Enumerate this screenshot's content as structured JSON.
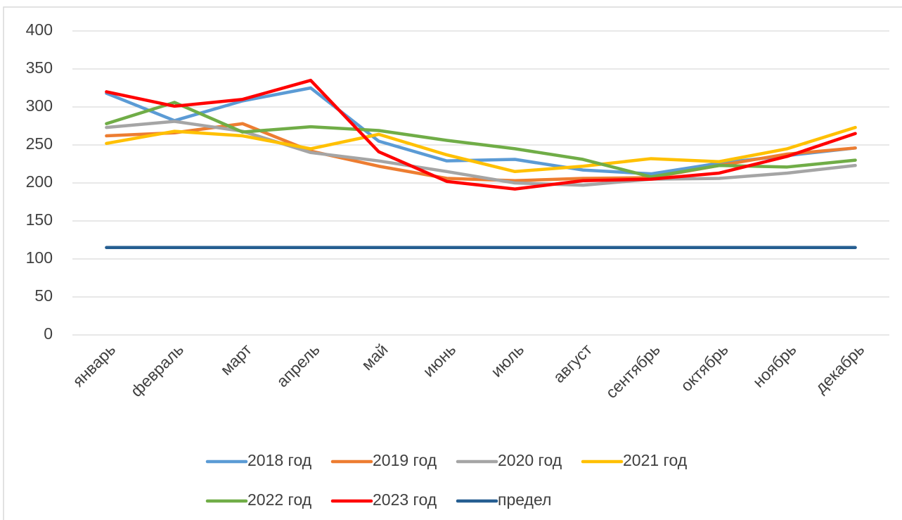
{
  "chart_data": {
    "type": "line",
    "categories": [
      "январь",
      "февраль",
      "март",
      "апрель",
      "май",
      "июнь",
      "июль",
      "август",
      "сентябрь",
      "октябрь",
      "ноябрь",
      "декабрь"
    ],
    "series": [
      {
        "name": "2018 год",
        "color": "#5b9bd5",
        "values": [
          318,
          282,
          308,
          325,
          255,
          229,
          231,
          217,
          212,
          226,
          236,
          246
        ]
      },
      {
        "name": "2019 год",
        "color": "#ed7d31",
        "values": [
          262,
          266,
          278,
          242,
          222,
          206,
          203,
          206,
          207,
          223,
          238,
          246
        ]
      },
      {
        "name": "2020 год",
        "color": "#a5a5a5",
        "values": [
          273,
          281,
          268,
          240,
          229,
          215,
          200,
          197,
          205,
          206,
          213,
          223
        ]
      },
      {
        "name": "2021 год",
        "color": "#ffc000",
        "values": [
          252,
          268,
          262,
          245,
          264,
          237,
          215,
          222,
          232,
          228,
          245,
          273
        ]
      },
      {
        "name": "2022 год",
        "color": "#70ad47",
        "values": [
          278,
          306,
          267,
          274,
          269,
          256,
          245,
          231,
          208,
          223,
          221,
          230
        ]
      },
      {
        "name": "2023 год",
        "color": "#ff0000",
        "values": [
          320,
          301,
          310,
          335,
          241,
          202,
          192,
          203,
          205,
          213,
          235,
          265
        ]
      },
      {
        "name": "предел",
        "color": "#255e91",
        "values": [
          115,
          115,
          115,
          115,
          115,
          115,
          115,
          115,
          115,
          115,
          115,
          115
        ]
      }
    ],
    "ylim": [
      0,
      400
    ],
    "yticks": [
      0,
      50,
      100,
      150,
      200,
      250,
      300,
      350,
      400
    ],
    "grid": true,
    "legend": "bottom"
  }
}
